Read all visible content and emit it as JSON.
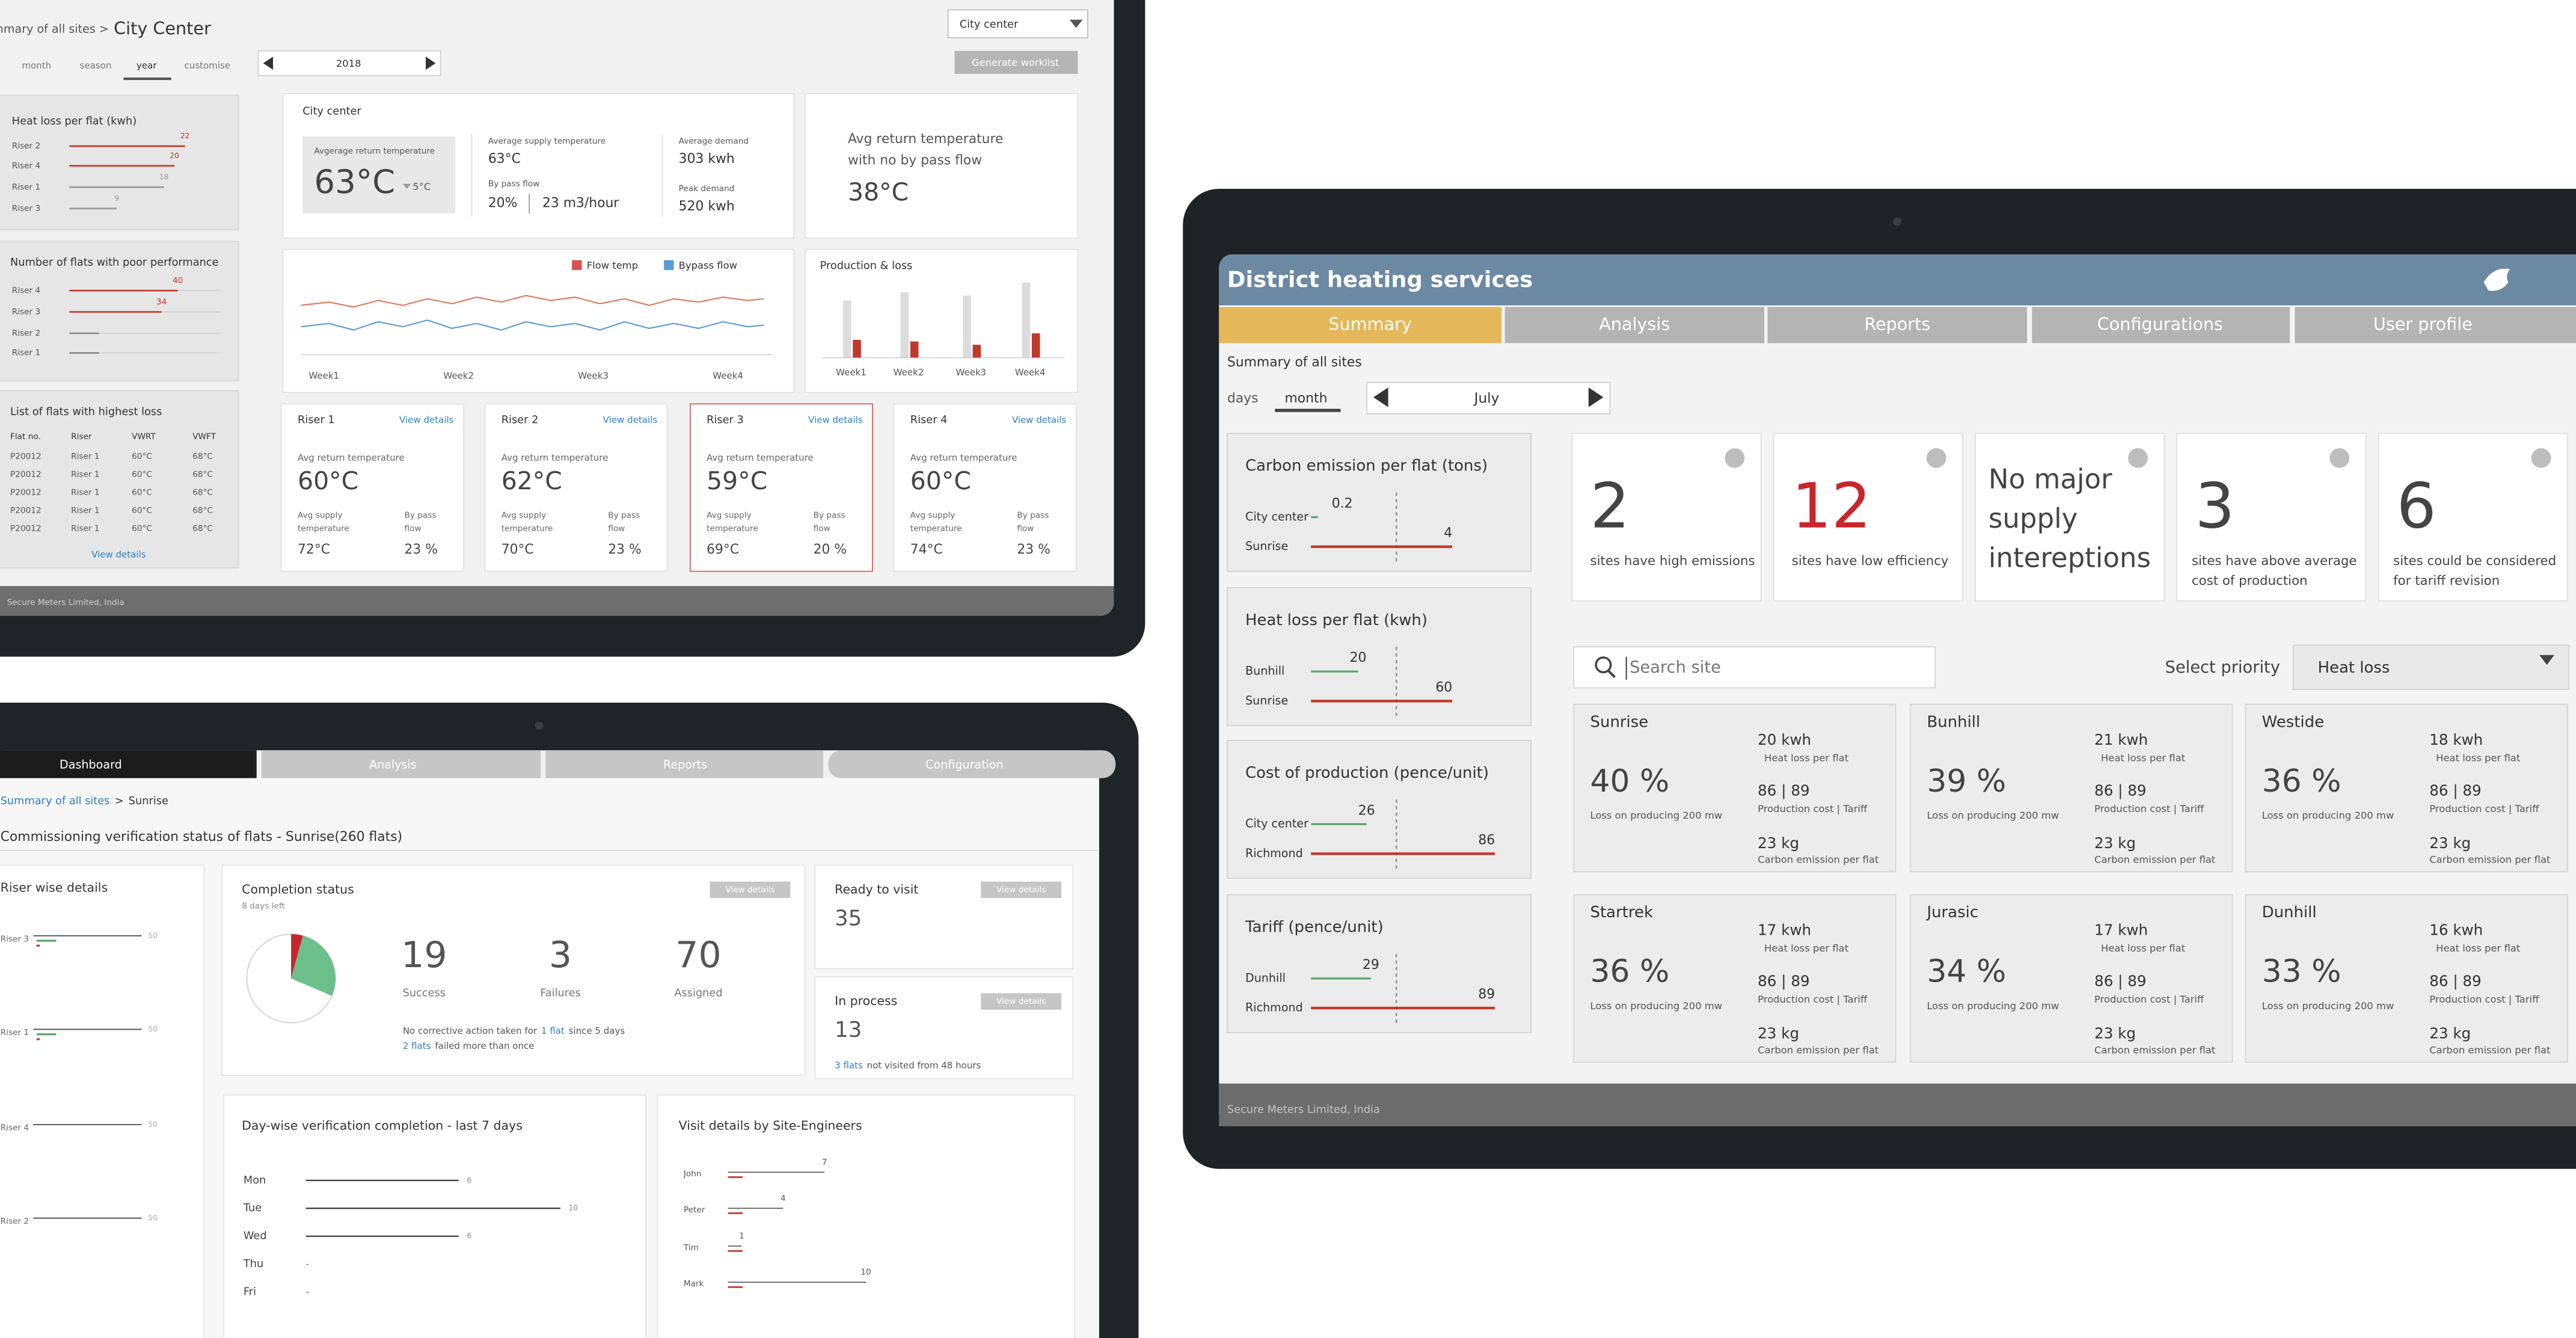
{
  "top_left_screen": {
    "breadcrumb_parent": "Summary of all sites >",
    "breadcrumb_current": "City Center",
    "site_select": "City center",
    "period_tabs": [
      "month",
      "season",
      "year",
      "customise"
    ],
    "period_value": "2018",
    "action_button": "Generate worklist",
    "heat_loss_panel": {
      "title": "Heat loss per flat (kwh)",
      "rows": [
        {
          "label": "Riser 2",
          "value": 22
        },
        {
          "label": "Riser 4",
          "value": 20
        },
        {
          "label": "Riser 1",
          "value": 18
        },
        {
          "label": "Riser 3",
          "value": 9
        }
      ]
    },
    "poor_performance_panel": {
      "title": "Number of flats with poor performance",
      "rows": [
        {
          "label": "Riser 4",
          "value": 40
        },
        {
          "label": "Riser 3",
          "value": 34
        },
        {
          "label": "Riser 2"
        },
        {
          "label": "Riser 1"
        }
      ]
    },
    "loss_list": {
      "title": "List of flats with highest loss",
      "columns": [
        "Flat no.",
        "Riser",
        "VWRT",
        "VWFT"
      ],
      "rows": [
        [
          "P20012",
          "Riser 1",
          "60°C",
          "68°C"
        ],
        [
          "P20012",
          "Riser 1",
          "60°C",
          "68°C"
        ],
        [
          "P20012",
          "Riser 1",
          "60°C",
          "68°C"
        ],
        [
          "P20012",
          "Riser 1",
          "60°C",
          "68°C"
        ],
        [
          "P20012",
          "Riser 1",
          "60°C",
          "68°C"
        ]
      ],
      "link": "View details"
    },
    "summary_card": {
      "title": "City center",
      "return_label": "Avgerage return temperature",
      "return_value": "63°C",
      "return_change": "5°C",
      "supply_label": "Average supply temperature",
      "supply_value": "63°C",
      "bypass_label": "By pass flow",
      "bypass_percent": "20%",
      "bypass_flow": "23 m3/hour",
      "demand_label": "Average demand",
      "demand_value": "303 kwh",
      "peak_label": "Peak demand",
      "peak_value": "520 kwh"
    },
    "no_bypass_card": {
      "lines": [
        "Avg return temperature",
        "with no by pass flow"
      ],
      "value": "38°C"
    },
    "flow_chart": {
      "series": [
        {
          "name": "Flow temp",
          "color": "#d9534f"
        },
        {
          "name": "Bypass flow",
          "color": "#5b9bd5"
        }
      ],
      "weeks": [
        "Week1",
        "Week2",
        "Week3",
        "Week4"
      ]
    },
    "production_chart": {
      "title": "Production & loss",
      "weeks": [
        "Week1",
        "Week2",
        "Week3",
        "Week4"
      ]
    },
    "risers": [
      {
        "name": "Riser 1",
        "link": "View details",
        "return_label": "Avg return temperature",
        "return_value": "60°C",
        "supply_label": [
          "Avg supply",
          "temperature"
        ],
        "supply_value": "72°C",
        "bypass_label": [
          "By pass",
          "flow"
        ],
        "bypass_value": "23 %"
      },
      {
        "name": "Riser 2",
        "link": "View details",
        "return_label": "Avg return temperature",
        "return_value": "62°C",
        "supply_label": [
          "Avg supply",
          "temperature"
        ],
        "supply_value": "70°C",
        "bypass_label": [
          "By pass",
          "flow"
        ],
        "bypass_value": "23 %"
      },
      {
        "name": "Riser 3",
        "link": "View details",
        "return_label": "Avg return temperature",
        "return_value": "59°C",
        "supply_label": [
          "Avg supply",
          "temperature"
        ],
        "supply_value": "69°C",
        "bypass_label": [
          "By pass",
          "flow"
        ],
        "bypass_value": "20 %"
      },
      {
        "name": "Riser 4",
        "link": "View details",
        "return_label": "Avg return temperature",
        "return_value": "60°C",
        "supply_label": [
          "Avg supply",
          "temperature"
        ],
        "supply_value": "74°C",
        "bypass_label": [
          "By pass",
          "flow"
        ],
        "bypass_value": "23 %"
      }
    ],
    "footer": "Secure Meters Limited, India"
  },
  "bottom_left_screen": {
    "tabs": [
      "Dashboard",
      "Analysis",
      "Reports",
      "Configuration"
    ],
    "breadcrumb_parent": "Summary of all sites",
    "breadcrumb_separator": ">",
    "breadcrumb_current": "Sunrise",
    "page_title": "Commissioning verification status of flats - Sunrise(260 flats)",
    "riser_details": {
      "title": "Riser wise details",
      "rows": [
        {
          "label": "Riser 3",
          "value": 50
        },
        {
          "label": "Riser 1",
          "value": 50
        },
        {
          "label": "Riser 4",
          "value": 50
        },
        {
          "label": "Riser 2",
          "value": 50
        }
      ]
    },
    "completion": {
      "title": "Completion status",
      "subtitle": "8 days left",
      "button": "View details",
      "success": 19,
      "success_label": "Success",
      "failures": 3,
      "failures_label": "Failures",
      "assigned": 70,
      "assigned_label": "Assigned",
      "note_1": [
        "No corrective action taken for",
        "1 flat",
        "since 5 days"
      ],
      "note_2": [
        "2 flats",
        "failed more than once"
      ]
    },
    "ready": {
      "title": "Ready to visit",
      "button": "View details",
      "value": "35"
    },
    "in_process": {
      "title": "In process",
      "button": "View details",
      "value": "13",
      "note": [
        "3 flats",
        "not visited from 48 hours"
      ]
    },
    "day_wise": {
      "title": "Day-wise verification completion - last 7 days",
      "rows": [
        {
          "day": "Mon",
          "value": 6
        },
        {
          "day": "Tue",
          "value": 10
        },
        {
          "day": "Wed",
          "value": 6
        },
        {
          "day": "Thu",
          "value": "-"
        },
        {
          "day": "Fri",
          "value": "-"
        }
      ]
    },
    "visits": {
      "title": "Visit details by Site-Engineers",
      "rows": [
        {
          "name": "John",
          "value": 7
        },
        {
          "name": "Peter",
          "value": 4
        },
        {
          "name": "Tim",
          "value": 1
        },
        {
          "name": "Mark",
          "value": 10
        }
      ]
    }
  },
  "right_screen": {
    "header": "District heating services",
    "tabs": [
      "Summary",
      "Analysis",
      "Reports",
      "Configurations",
      "User profile"
    ],
    "breadcrumb": "Summary of all sites",
    "period_tabs": [
      "days",
      "month"
    ],
    "period_value": "July",
    "mini_charts": [
      {
        "title": "Carbon emission per flat (tons)",
        "rows": [
          {
            "label": "City center",
            "value": 0.2
          },
          {
            "label": "Sunrise",
            "value": 4
          }
        ]
      },
      {
        "title": "Heat loss per flat (kwh)",
        "rows": [
          {
            "label": "Bunhill",
            "value": 20
          },
          {
            "label": "Sunrise",
            "value": 60
          }
        ]
      },
      {
        "title": "Cost of production (pence/unit)",
        "rows": [
          {
            "label": "City center",
            "value": 26
          },
          {
            "label": "Richmond",
            "value": 86
          }
        ]
      },
      {
        "title": "Tariff (pence/unit)",
        "rows": [
          {
            "label": "Dunhill",
            "value": 29
          },
          {
            "label": "Richmond",
            "value": 89
          }
        ]
      }
    ],
    "kpis": [
      {
        "value": "2",
        "lines": [
          "sites have high emissions"
        ]
      },
      {
        "value": "12",
        "color": "#c8262c",
        "lines": [
          "sites have low efficiency"
        ]
      },
      {
        "title_lines": [
          "No major",
          "supply",
          "intereptions"
        ]
      },
      {
        "value": "3",
        "lines": [
          "sites have above average",
          "cost of production"
        ]
      },
      {
        "value": "6",
        "lines": [
          "sites could be considered",
          "for tariff revision"
        ]
      }
    ],
    "search_placeholder": "Search site",
    "priority_label": "Select priority",
    "priority_value": "Heat loss",
    "sites": [
      {
        "name": "Sunrise",
        "percent": "40 %",
        "percent_label": "Loss on producing 200 mw",
        "heat_loss": "20 kwh",
        "heat_loss_label": "Heat loss per flat",
        "cost": "86 | 89",
        "cost_label": "Production cost | Tariff",
        "carbon": "23 kg",
        "carbon_label": "Carbon emission per flat"
      },
      {
        "name": "Bunhill",
        "percent": "39 %",
        "percent_label": "Loss on producing 200 mw",
        "heat_loss": "21 kwh",
        "heat_loss_label": "Heat loss per flat",
        "cost": "86 | 89",
        "cost_label": "Production cost | Tariff",
        "carbon": "23 kg",
        "carbon_label": "Carbon emission per flat"
      },
      {
        "name": "Westide",
        "percent": "36 %",
        "percent_label": "Loss on producing 200 mw",
        "heat_loss": "18 kwh",
        "heat_loss_label": "Heat loss per flat",
        "cost": "86 | 89",
        "cost_label": "Production cost | Tariff",
        "carbon": "23 kg",
        "carbon_label": "Carbon emission per flat"
      },
      {
        "name": "Startrek",
        "percent": "36 %",
        "percent_label": "Loss on producing 200 mw",
        "heat_loss": "17 kwh",
        "heat_loss_label": "Heat loss per flat",
        "cost": "86 | 89",
        "cost_label": "Production cost | Tariff",
        "carbon": "23 kg",
        "carbon_label": "Carbon emission per flat"
      },
      {
        "name": "Jurasic",
        "percent": "34 %",
        "percent_label": "Loss on producing 200 mw",
        "heat_loss": "17 kwh",
        "heat_loss_label": "Heat loss per flat",
        "cost": "86 | 89",
        "cost_label": "Production cost | Tariff",
        "carbon": "23 kg",
        "carbon_label": "Carbon emission per flat"
      },
      {
        "name": "Dunhill",
        "percent": "33 %",
        "percent_label": "Loss on producing 200 mw",
        "heat_loss": "16 kwh",
        "heat_loss_label": "Heat loss per flat",
        "cost": "86 | 89",
        "cost_label": "Production cost | Tariff",
        "carbon": "23 kg",
        "carbon_label": "Carbon emission per flat"
      }
    ],
    "footer": "Secure Meters Limited, India"
  }
}
